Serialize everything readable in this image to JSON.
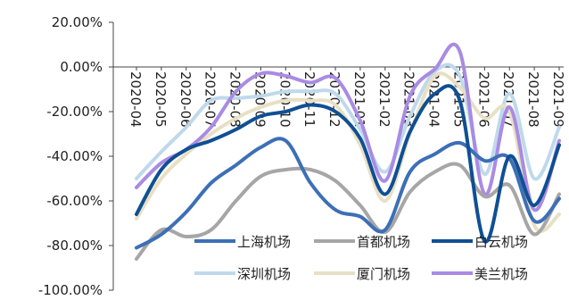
{
  "chart_data": {
    "type": "line",
    "title": "",
    "xlabel": "",
    "ylabel": "",
    "ylim": [
      -100,
      20
    ],
    "y_ticks": [
      "20.00%",
      "0.00%",
      "-20.00%",
      "-40.00%",
      "-60.00%",
      "-80.00%",
      "-100.00%"
    ],
    "y_tick_values": [
      20,
      0,
      -20,
      -40,
      -60,
      -80,
      -100
    ],
    "categories": [
      "2020-04",
      "2020-05",
      "2020-06",
      "2020-07",
      "2020-08",
      "2020-09",
      "2020-10",
      "2020-11",
      "2020-12",
      "2021-01",
      "2021-02",
      "2021-03",
      "2021-04",
      "2021-05",
      "2021-06",
      "2021-07",
      "2021-08",
      "2021-09"
    ],
    "grid": false,
    "legend_position": "bottom-right",
    "series": [
      {
        "name": "上海机场",
        "color": "#3D6FB6",
        "values": [
          -81,
          -75,
          -65,
          -52,
          -44,
          -36,
          -33,
          -52,
          -64,
          -67,
          -73,
          -47,
          -39,
          -34,
          -42,
          -41,
          -69,
          -59
        ]
      },
      {
        "name": "首都机场",
        "color": "#A6A6A6",
        "values": [
          -86,
          -73,
          -76,
          -73,
          -60,
          -49,
          -46,
          -46,
          -51,
          -62,
          -74,
          -56,
          -47,
          -44,
          -58,
          -53,
          -75,
          -57
        ]
      },
      {
        "name": "白云机场",
        "color": "#0F4F94",
        "values": [
          -66,
          -46,
          -37,
          -33,
          -28,
          -22,
          -20,
          -17,
          -20,
          -32,
          -57,
          -29,
          -12,
          -15,
          -78,
          -40,
          -62,
          -35
        ]
      },
      {
        "name": "深圳机场",
        "color": "#BFD9EC",
        "values": [
          -50,
          -38,
          -27,
          -15,
          -14,
          -13,
          -11,
          -11,
          -12,
          -28,
          -47,
          -22,
          -2,
          -4,
          -48,
          -12,
          -50,
          -27
        ]
      },
      {
        "name": "厦门机场",
        "color": "#E8E0C4",
        "values": [
          -68,
          -50,
          -39,
          -30,
          -23,
          -18,
          -15,
          -15,
          -17,
          -35,
          -60,
          -30,
          -4,
          -9,
          -23,
          -20,
          -71,
          -66
        ]
      },
      {
        "name": "美兰机场",
        "color": "#A98BE3",
        "values": [
          -54,
          -43,
          -37,
          -27,
          -11,
          -3,
          -4,
          -7,
          -5,
          -24,
          -51,
          -13,
          -1,
          7,
          -57,
          -18,
          -64,
          -33
        ]
      }
    ]
  }
}
